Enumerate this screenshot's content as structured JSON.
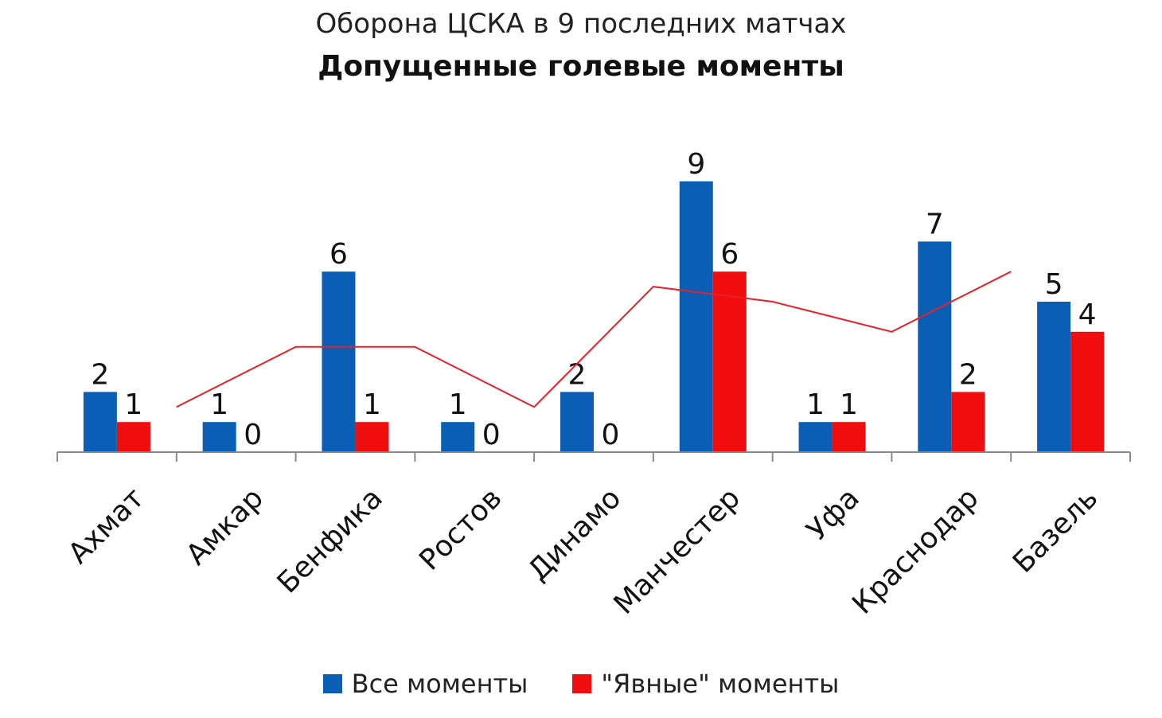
{
  "chart_data": {
    "type": "bar",
    "title": "Оборона ЦСКА в 9 последних матчах",
    "subtitle": "Допущенные голевые моменты",
    "categories": [
      "Ахмат",
      "Амкар",
      "Бенфика",
      "Ростов",
      "Динамо",
      "Манчестер",
      "Уфа",
      "Краснодар",
      "Базель"
    ],
    "series": [
      {
        "name": "Все моменты",
        "color": "#0a5fb4",
        "values": [
          2,
          1,
          6,
          1,
          2,
          9,
          1,
          7,
          5
        ]
      },
      {
        "name": "\"Явные\" моменты",
        "color": "#f00d0d",
        "values": [
          1,
          0,
          1,
          0,
          0,
          6,
          1,
          2,
          4
        ]
      }
    ],
    "trendline": {
      "color": "#e8202a",
      "values": [
        1.5,
        3.5,
        3.5,
        1.5,
        5.5,
        5.0,
        4.0,
        6.0
      ]
    },
    "ylim": [
      0,
      9.6
    ],
    "grid": false,
    "legend_position": "bottom",
    "xlabel": "",
    "ylabel": ""
  }
}
